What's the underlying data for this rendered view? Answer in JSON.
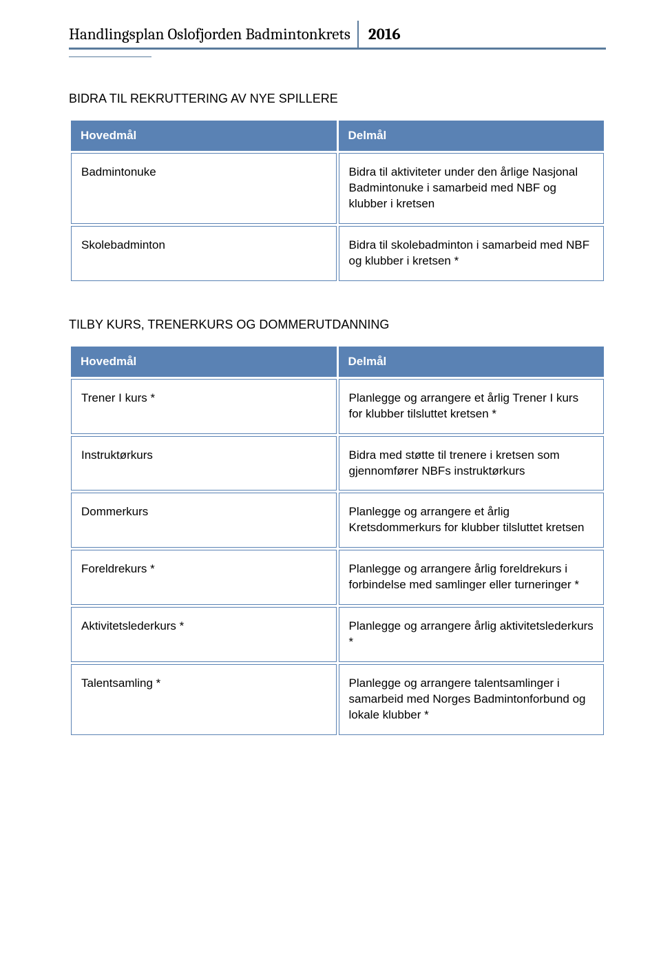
{
  "header": {
    "title": "Handlingsplan Oslofjorden Badmintonkrets",
    "year": "2016"
  },
  "colors": {
    "header_border": "#5a7b9c",
    "table_header_bg": "#5a82b4",
    "table_header_text": "#ffffff",
    "cell_border": "#5a82b4",
    "cell_bg": "#ffffff",
    "text": "#000000"
  },
  "typography": {
    "header_fontsize": 23,
    "section_title_fontsize": 18,
    "th_fontsize": 17,
    "td_fontsize": 17
  },
  "section1": {
    "title": "BIDRA TIL REKRUTTERING AV NYE SPILLERE",
    "col1": "Hovedmål",
    "col2": "Delmål",
    "rows": [
      {
        "left": "Badmintonuke",
        "right": "Bidra til aktiviteter under den årlige Nasjonal Badmintonuke i samarbeid med NBF og klubber i kretsen"
      },
      {
        "left": "Skolebadminton",
        "right": "Bidra til skolebadminton i samarbeid med NBF og klubber i kretsen *"
      }
    ]
  },
  "section2": {
    "title": "TILBY KURS, TRENERKURS OG DOMMERUTDANNING",
    "col1": "Hovedmål",
    "col2": "Delmål",
    "rows": [
      {
        "left": "Trener I kurs *",
        "right": "Planlegge og arrangere et årlig Trener I kurs for klubber tilsluttet kretsen *"
      },
      {
        "left": "Instruktørkurs",
        "right": "Bidra med støtte til trenere i kretsen som gjennomfører NBFs instruktørkurs"
      },
      {
        "left": "Dommerkurs",
        "right": "Planlegge og arrangere et årlig Kretsdommerkurs for klubber tilsluttet kretsen"
      },
      {
        "left": "Foreldrekurs *",
        "right": "Planlegge og arrangere årlig foreldrekurs i forbindelse med samlinger eller turneringer *"
      },
      {
        "left": "Aktivitetslederkurs *",
        "right": "Planlegge og arrangere årlig aktivitetslederkurs *"
      },
      {
        "left": "Talentsamling *",
        "right": "Planlegge og arrangere talentsamlinger i samarbeid med Norges Badmintonforbund og lokale klubber *"
      }
    ]
  }
}
